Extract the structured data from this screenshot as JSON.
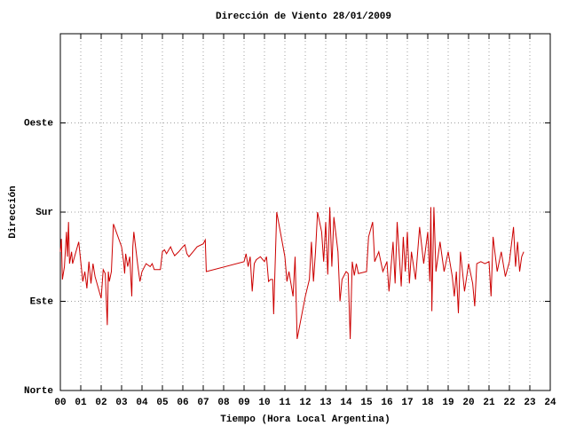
{
  "chart_data": {
    "type": "line",
    "title": "Dirección de Viento 28/01/2009",
    "x_label": "Tiempo (Hora Local Argentina)",
    "y_label": "Dirección",
    "color": "#cc0000",
    "grid": true,
    "xlim": [
      0,
      24
    ],
    "xticks": [
      {
        "value": 0,
        "label": "00"
      },
      {
        "value": 1,
        "label": "01"
      },
      {
        "value": 2,
        "label": "02"
      },
      {
        "value": 3,
        "label": "03"
      },
      {
        "value": 4,
        "label": "04"
      },
      {
        "value": 5,
        "label": "05"
      },
      {
        "value": 6,
        "label": "06"
      },
      {
        "value": 7,
        "label": "07"
      },
      {
        "value": 8,
        "label": "08"
      },
      {
        "value": 9,
        "label": "09"
      },
      {
        "value": 10,
        "label": "10"
      },
      {
        "value": 11,
        "label": "11"
      },
      {
        "value": 12,
        "label": "12"
      },
      {
        "value": 13,
        "label": "13"
      },
      {
        "value": 14,
        "label": "14"
      },
      {
        "value": 15,
        "label": "15"
      },
      {
        "value": 16,
        "label": "16"
      },
      {
        "value": 17,
        "label": "17"
      },
      {
        "value": 18,
        "label": "18"
      },
      {
        "value": 19,
        "label": "19"
      },
      {
        "value": 20,
        "label": "20"
      },
      {
        "value": 21,
        "label": "21"
      },
      {
        "value": 22,
        "label": "22"
      },
      {
        "value": 23,
        "label": "23"
      },
      {
        "value": 24,
        "label": "24"
      }
    ],
    "ylim": [
      0,
      360
    ],
    "yticks": [
      {
        "value": 0,
        "label": "Norte"
      },
      {
        "value": 90,
        "label": "Este"
      },
      {
        "value": 180,
        "label": "Sur"
      },
      {
        "value": 270,
        "label": "Oeste"
      }
    ],
    "x": [
      0.0,
      0.05,
      0.1,
      0.2,
      0.3,
      0.35,
      0.4,
      0.45,
      0.55,
      0.6,
      0.9,
      1.1,
      1.2,
      1.3,
      1.4,
      1.5,
      1.6,
      1.7,
      2.0,
      2.1,
      2.2,
      2.3,
      2.35,
      2.4,
      2.5,
      2.6,
      3.0,
      3.1,
      3.15,
      3.2,
      3.3,
      3.4,
      3.5,
      3.55,
      3.6,
      3.8,
      3.9,
      4.0,
      4.2,
      4.4,
      4.5,
      4.6,
      4.9,
      5.0,
      5.1,
      5.2,
      5.4,
      5.5,
      5.6,
      5.8,
      6.0,
      6.1,
      6.2,
      6.3,
      6.5,
      6.7,
      7.0,
      7.1,
      7.15,
      9.0,
      9.1,
      9.2,
      9.3,
      9.4,
      9.5,
      9.6,
      9.8,
      10.0,
      10.1,
      10.2,
      10.3,
      10.4,
      10.45,
      10.6,
      11.0,
      11.1,
      11.2,
      11.4,
      11.5,
      11.6,
      12.0,
      12.2,
      12.3,
      12.4,
      12.5,
      12.6,
      12.8,
      12.9,
      13.0,
      13.1,
      13.2,
      13.3,
      13.4,
      13.6,
      13.7,
      13.8,
      14.0,
      14.1,
      14.2,
      14.3,
      14.4,
      14.5,
      14.6,
      15.0,
      15.1,
      15.3,
      15.4,
      15.6,
      15.8,
      16.0,
      16.1,
      16.3,
      16.4,
      16.5,
      16.7,
      16.8,
      16.9,
      17.0,
      17.1,
      17.2,
      17.4,
      17.6,
      17.8,
      18.0,
      18.1,
      18.15,
      18.2,
      18.3,
      18.4,
      18.6,
      18.8,
      19.0,
      19.2,
      19.3,
      19.4,
      19.5,
      19.6,
      19.8,
      20.0,
      20.2,
      20.3,
      20.4,
      20.6,
      20.8,
      21.0,
      21.1,
      21.2,
      21.4,
      21.6,
      21.8,
      22.0,
      22.2,
      22.3,
      22.4,
      22.5,
      22.6,
      22.7
    ],
    "values": [
      140,
      153,
      112,
      125,
      160,
      135,
      170,
      128,
      140,
      128,
      150,
      110,
      120,
      103,
      130,
      108,
      128,
      115,
      93,
      122,
      118,
      66,
      120,
      110,
      120,
      168,
      145,
      130,
      118,
      138,
      125,
      135,
      95,
      145,
      160,
      125,
      110,
      120,
      128,
      125,
      128,
      122,
      122,
      140,
      142,
      138,
      145,
      140,
      136,
      140,
      145,
      147,
      138,
      135,
      140,
      145,
      148,
      152,
      120,
      130,
      138,
      125,
      135,
      100,
      128,
      132,
      135,
      130,
      135,
      110,
      112,
      112,
      77,
      180,
      135,
      110,
      120,
      95,
      135,
      52,
      95,
      112,
      150,
      110,
      140,
      180,
      160,
      130,
      170,
      117,
      185,
      125,
      175,
      140,
      90,
      112,
      120,
      118,
      52,
      130,
      116,
      128,
      118,
      120,
      155,
      170,
      130,
      140,
      120,
      130,
      100,
      150,
      108,
      170,
      105,
      155,
      120,
      160,
      108,
      140,
      112,
      165,
      128,
      160,
      110,
      185,
      80,
      185,
      120,
      150,
      120,
      140,
      115,
      95,
      120,
      78,
      140,
      100,
      128,
      108,
      85,
      128,
      130,
      128,
      130,
      95,
      155,
      120,
      140,
      115,
      130,
      165,
      125,
      150,
      120,
      135,
      140
    ]
  }
}
